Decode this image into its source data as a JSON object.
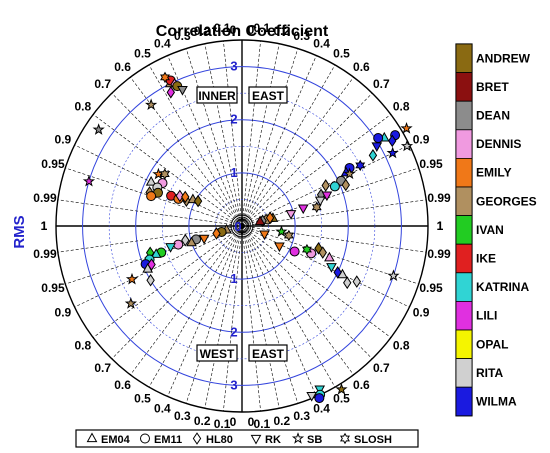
{
  "chart_data": {
    "type": "scatter",
    "title": "Correlation Coefficient",
    "radial_label": "RMS",
    "rms_ticks": [
      "1",
      "2",
      "3"
    ],
    "rms_max": 3.5,
    "corr_ticks": [
      {
        "label": "0",
        "value": 0
      },
      {
        "label": "0.1",
        "value": 0.1
      },
      {
        "label": "0.2",
        "value": 0.2
      },
      {
        "label": "0.3",
        "value": 0.3
      },
      {
        "label": "0.4",
        "value": 0.4
      },
      {
        "label": "0.5",
        "value": 0.5
      },
      {
        "label": "0.6",
        "value": 0.6
      },
      {
        "label": "0.7",
        "value": 0.7
      },
      {
        "label": "0.8",
        "value": 0.8
      },
      {
        "label": "0.9",
        "value": 0.9
      },
      {
        "label": "0.95",
        "value": 0.95
      },
      {
        "label": "0.99",
        "value": 0.99
      },
      {
        "label": "1",
        "value": 1
      }
    ],
    "quadrants": {
      "ne": "EAST",
      "nw": "INNER",
      "sw": "WEST",
      "se": "EAST"
    },
    "storms": [
      {
        "name": "ANDREW",
        "color": "#8a6a12"
      },
      {
        "name": "BRET",
        "color": "#8b1010"
      },
      {
        "name": "DEAN",
        "color": "#8c8c8c"
      },
      {
        "name": "DENNIS",
        "color": "#f09ae0"
      },
      {
        "name": "EMILY",
        "color": "#f07818"
      },
      {
        "name": "GEORGES",
        "color": "#b09060"
      },
      {
        "name": "IVAN",
        "color": "#22cc22"
      },
      {
        "name": "IKE",
        "color": "#e02020"
      },
      {
        "name": "KATRINA",
        "color": "#30d4d4"
      },
      {
        "name": "LILI",
        "color": "#e030e0"
      },
      {
        "name": "OPAL",
        "color": "#f5f500"
      },
      {
        "name": "RITA",
        "color": "#d0d0d0"
      },
      {
        "name": "WILMA",
        "color": "#1a1ae0"
      }
    ],
    "models": [
      {
        "name": "EM04",
        "symbol": "triangle"
      },
      {
        "name": "EM11",
        "symbol": "circle"
      },
      {
        "name": "HL80",
        "symbol": "diamond"
      },
      {
        "name": "RK",
        "symbol": "triangle-down"
      },
      {
        "name": "SB",
        "symbol": "star"
      },
      {
        "name": "SLOSH",
        "symbol": "hexagram"
      }
    ],
    "points": [
      {
        "quad": "nw",
        "corr": 0.45,
        "rms": 3.0,
        "storm": "GEORGES",
        "model": "EM04"
      },
      {
        "quad": "nw",
        "corr": 0.44,
        "rms": 3.05,
        "storm": "IKE",
        "model": "EM11"
      },
      {
        "quad": "nw",
        "corr": 0.43,
        "rms": 2.95,
        "storm": "DENNIS",
        "model": "HL80"
      },
      {
        "quad": "nw",
        "corr": 0.47,
        "rms": 2.85,
        "storm": "LILI",
        "model": "HL80"
      },
      {
        "quad": "nw",
        "corr": 0.42,
        "rms": 2.9,
        "storm": "ANDREW",
        "model": "EM11"
      },
      {
        "quad": "nw",
        "corr": 0.46,
        "rms": 3.15,
        "storm": "EMILY",
        "model": "SLOSH"
      },
      {
        "quad": "nw",
        "corr": 0.4,
        "rms": 2.8,
        "storm": "DEAN",
        "model": "RK"
      },
      {
        "quad": "nw",
        "corr": 0.85,
        "rms": 1.85,
        "storm": "EMILY",
        "model": "SB"
      },
      {
        "quad": "nw",
        "corr": 0.83,
        "rms": 1.75,
        "storm": "GEORGES",
        "model": "SLOSH"
      },
      {
        "quad": "nw",
        "corr": 0.88,
        "rms": 1.7,
        "storm": "DENNIS",
        "model": "EM11"
      },
      {
        "quad": "nw",
        "corr": 0.9,
        "rms": 1.9,
        "storm": "RITA",
        "model": "EM04"
      },
      {
        "quad": "nw",
        "corr": 0.91,
        "rms": 1.75,
        "storm": "RITA",
        "model": "EM11"
      },
      {
        "quad": "nw",
        "corr": 0.93,
        "rms": 1.7,
        "storm": "ANDREW",
        "model": "EM11"
      },
      {
        "quad": "nw",
        "corr": 0.94,
        "rms": 1.85,
        "storm": "GEORGES",
        "model": "HL80"
      },
      {
        "quad": "nw",
        "corr": 0.95,
        "rms": 1.8,
        "storm": "EMILY",
        "model": "EM11"
      },
      {
        "quad": "nw",
        "corr": 0.92,
        "rms": 1.45,
        "storm": "IKE",
        "model": "EM11"
      },
      {
        "quad": "nw",
        "corr": 0.92,
        "rms": 1.3,
        "storm": "EMILY",
        "model": "EM11"
      },
      {
        "quad": "nw",
        "corr": 0.9,
        "rms": 1.3,
        "storm": "DENNIS",
        "model": "HL80"
      },
      {
        "quad": "nw",
        "corr": 0.91,
        "rms": 1.15,
        "storm": "GEORGES",
        "model": "HL80"
      },
      {
        "quad": "nw",
        "corr": 0.89,
        "rms": 1.2,
        "storm": "EMILY",
        "model": "HL80"
      },
      {
        "quad": "nw",
        "corr": 0.88,
        "rms": 1.05,
        "storm": "GEORGES",
        "model": "EM04"
      },
      {
        "quad": "nw",
        "corr": 0.87,
        "rms": 0.95,
        "storm": "ANDREW",
        "model": "HL80"
      },
      {
        "quad": "nw",
        "corr": 0.6,
        "rms": 2.85,
        "storm": "GEORGES",
        "model": "SB"
      },
      {
        "quad": "nw",
        "corr": 0.83,
        "rms": 3.25,
        "storm": "DEAN",
        "model": "SB"
      },
      {
        "quad": "nw",
        "corr": 0.96,
        "rms": 3.0,
        "storm": "LILI",
        "model": "SB"
      },
      {
        "quad": "ne",
        "corr": 0.86,
        "rms": 3.35,
        "storm": "WILMA",
        "model": "EM11"
      },
      {
        "quad": "ne",
        "corr": 0.87,
        "rms": 3.25,
        "storm": "WILMA",
        "model": "HL80"
      },
      {
        "quad": "ne",
        "corr": 0.85,
        "rms": 3.15,
        "storm": "KATRINA",
        "model": "EM04"
      },
      {
        "quad": "ne",
        "corr": 0.84,
        "rms": 3.05,
        "storm": "WILMA",
        "model": "EM11"
      },
      {
        "quad": "ne",
        "corr": 0.86,
        "rms": 2.95,
        "storm": "WILMA",
        "model": "RK"
      },
      {
        "quad": "ne",
        "corr": 0.88,
        "rms": 2.8,
        "storm": "KATRINA",
        "model": "HL80"
      },
      {
        "quad": "ne",
        "corr": 0.89,
        "rms": 2.5,
        "storm": "WILMA",
        "model": "SLOSH"
      },
      {
        "quad": "ne",
        "corr": 0.88,
        "rms": 2.3,
        "storm": "WILMA",
        "model": "EM11"
      },
      {
        "quad": "ne",
        "corr": 0.89,
        "rms": 2.2,
        "storm": "WILMA",
        "model": "EM04"
      },
      {
        "quad": "ne",
        "corr": 0.91,
        "rms": 2.05,
        "storm": "DEAN",
        "model": "EM11"
      },
      {
        "quad": "ne",
        "corr": 0.93,
        "rms": 2.1,
        "storm": "GEORGES",
        "model": "HL80"
      },
      {
        "quad": "ne",
        "corr": 0.92,
        "rms": 1.9,
        "storm": "KATRINA",
        "model": "EM11"
      },
      {
        "quad": "ne",
        "corr": 0.9,
        "rms": 1.75,
        "storm": "GEORGES",
        "model": "HL80"
      },
      {
        "quad": "ne",
        "corr": 0.93,
        "rms": 1.6,
        "storm": "DEAN",
        "model": "HL80"
      },
      {
        "quad": "ne",
        "corr": 0.94,
        "rms": 1.7,
        "storm": "LILI",
        "model": "RK"
      },
      {
        "quad": "ne",
        "corr": 0.95,
        "rms": 1.55,
        "storm": "RITA",
        "model": "RK"
      },
      {
        "quad": "ne",
        "corr": 0.97,
        "rms": 1.45,
        "storm": "GEORGES",
        "model": "SLOSH"
      },
      {
        "quad": "ne",
        "corr": 0.96,
        "rms": 1.2,
        "storm": "LILI",
        "model": "RK"
      },
      {
        "quad": "ne",
        "corr": 0.97,
        "rms": 0.95,
        "storm": "DENNIS",
        "model": "RK"
      },
      {
        "quad": "ne",
        "corr": 0.97,
        "rms": 0.6,
        "storm": "ANDREW",
        "model": "EM04"
      },
      {
        "quad": "ne",
        "corr": 0.97,
        "rms": 0.5,
        "storm": "GEORGES",
        "model": "EM11"
      },
      {
        "quad": "ne",
        "corr": 0.97,
        "rms": 0.4,
        "storm": "DEAN",
        "model": "HL80"
      },
      {
        "quad": "ne",
        "corr": 0.97,
        "rms": 0.35,
        "storm": "BRET",
        "model": "EM04"
      },
      {
        "quad": "ne",
        "corr": 0.96,
        "rms": 0.55,
        "storm": "EMILY",
        "model": "HL80"
      },
      {
        "quad": "ne",
        "corr": 0.9,
        "rms": 2.25,
        "storm": "GEORGES",
        "model": "SB"
      },
      {
        "quad": "ne",
        "corr": 0.86,
        "rms": 3.6,
        "storm": "EMILY",
        "model": "SB"
      },
      {
        "quad": "ne",
        "corr": 0.9,
        "rms": 3.45,
        "storm": "RITA",
        "model": "SB"
      },
      {
        "quad": "ne",
        "corr": 0.9,
        "rms": 3.15,
        "storm": "WILMA",
        "model": "SB"
      },
      {
        "quad": "sw",
        "corr": 0.97,
        "rms": 0.3,
        "storm": "GEORGES",
        "model": "EM04"
      },
      {
        "quad": "sw",
        "corr": 0.96,
        "rms": 0.4,
        "storm": "ANDREW",
        "model": "EM11"
      },
      {
        "quad": "sw",
        "corr": 0.96,
        "rms": 0.5,
        "storm": "EMILY",
        "model": "HL80"
      },
      {
        "quad": "sw",
        "corr": 0.95,
        "rms": 0.75,
        "storm": "EMILY",
        "model": "RK"
      },
      {
        "quad": "sw",
        "corr": 0.96,
        "rms": 0.9,
        "storm": "DEAN",
        "model": "EM11"
      },
      {
        "quad": "sw",
        "corr": 0.95,
        "rms": 1.0,
        "storm": "GEORGES",
        "model": "EM04"
      },
      {
        "quad": "sw",
        "corr": 0.97,
        "rms": 1.1,
        "storm": "RITA",
        "model": "HL80"
      },
      {
        "quad": "sw",
        "corr": 0.96,
        "rms": 1.25,
        "storm": "DENNIS",
        "model": "EM11"
      },
      {
        "quad": "sw",
        "corr": 0.96,
        "rms": 1.4,
        "storm": "KATRINA",
        "model": "RK"
      },
      {
        "quad": "sw",
        "corr": 0.95,
        "rms": 1.6,
        "storm": "IVAN",
        "model": "EM11"
      },
      {
        "quad": "sw",
        "corr": 0.95,
        "rms": 1.7,
        "storm": "KATRINA",
        "model": "EM04"
      },
      {
        "quad": "sw",
        "corr": 0.96,
        "rms": 1.8,
        "storm": "IVAN",
        "model": "HL80"
      },
      {
        "quad": "sw",
        "corr": 0.94,
        "rms": 1.85,
        "storm": "KATRINA",
        "model": "EM11"
      },
      {
        "quad": "sw",
        "corr": 0.93,
        "rms": 1.95,
        "storm": "WILMA",
        "model": "EM11"
      },
      {
        "quad": "sw",
        "corr": 0.92,
        "rms": 1.85,
        "storm": "LILI",
        "model": "HL80"
      },
      {
        "quad": "sw",
        "corr": 0.91,
        "rms": 1.95,
        "storm": "RITA",
        "model": "EM04"
      },
      {
        "quad": "sw",
        "corr": 0.86,
        "rms": 2.0,
        "storm": "RITA",
        "model": "HL80"
      },
      {
        "quad": "sw",
        "corr": 0.9,
        "rms": 2.3,
        "storm": "EMILY",
        "model": "SB"
      },
      {
        "quad": "sw",
        "corr": 0.82,
        "rms": 2.55,
        "storm": "GEORGES",
        "model": "SB"
      },
      {
        "quad": "se",
        "corr": 0.94,
        "rms": 0.45,
        "storm": "EMILY",
        "model": "RK"
      },
      {
        "quad": "se",
        "corr": 0.88,
        "rms": 0.8,
        "storm": "EMILY",
        "model": "RK"
      },
      {
        "quad": "se",
        "corr": 0.9,
        "rms": 1.1,
        "storm": "LILI",
        "model": "EM11"
      },
      {
        "quad": "se",
        "corr": 0.93,
        "rms": 1.4,
        "storm": "DENNIS",
        "model": "EM11"
      },
      {
        "quad": "se",
        "corr": 0.94,
        "rms": 1.3,
        "storm": "IVAN",
        "model": "SLOSH"
      },
      {
        "quad": "se",
        "corr": 0.96,
        "rms": 1.5,
        "storm": "ANDREW",
        "model": "HL80"
      },
      {
        "quad": "se",
        "corr": 0.95,
        "rms": 1.6,
        "storm": "GEORGES",
        "model": "HL80"
      },
      {
        "quad": "se",
        "corr": 0.94,
        "rms": 1.75,
        "storm": "DENNIS",
        "model": "EM04"
      },
      {
        "quad": "se",
        "corr": 0.91,
        "rms": 1.85,
        "storm": "KATRINA",
        "model": "RK"
      },
      {
        "quad": "se",
        "corr": 0.9,
        "rms": 2.1,
        "storm": "RITA",
        "model": "EM04"
      },
      {
        "quad": "se",
        "corr": 0.88,
        "rms": 2.25,
        "storm": "RITA",
        "model": "HL80"
      },
      {
        "quad": "se",
        "corr": 0.9,
        "rms": 2.0,
        "storm": "WILMA",
        "model": "HL80"
      },
      {
        "quad": "se",
        "corr": 0.9,
        "rms": 2.4,
        "storm": "RITA",
        "model": "HL80"
      },
      {
        "quad": "se",
        "corr": 0.98,
        "rms": 0.9,
        "storm": "GEORGES",
        "model": "SLOSH"
      },
      {
        "quad": "se",
        "corr": 0.99,
        "rms": 0.75,
        "storm": "IVAN",
        "model": "SB"
      },
      {
        "quad": "se",
        "corr": 0.95,
        "rms": 3.0,
        "storm": "RITA",
        "model": "SB"
      },
      {
        "quad": "se",
        "corr": 0.43,
        "rms": 3.4,
        "storm": "KATRINA",
        "model": "RK"
      },
      {
        "quad": "se",
        "corr": 0.42,
        "rms": 3.5,
        "storm": "KATRINA",
        "model": "EM11"
      },
      {
        "quad": "se",
        "corr": 0.41,
        "rms": 3.55,
        "storm": "WILMA",
        "model": "EM11"
      },
      {
        "quad": "se",
        "corr": 0.38,
        "rms": 3.45,
        "storm": "RITA",
        "model": "RK"
      },
      {
        "quad": "se",
        "corr": 0.52,
        "rms": 3.6,
        "storm": "ANDREW",
        "model": "SB"
      }
    ]
  }
}
